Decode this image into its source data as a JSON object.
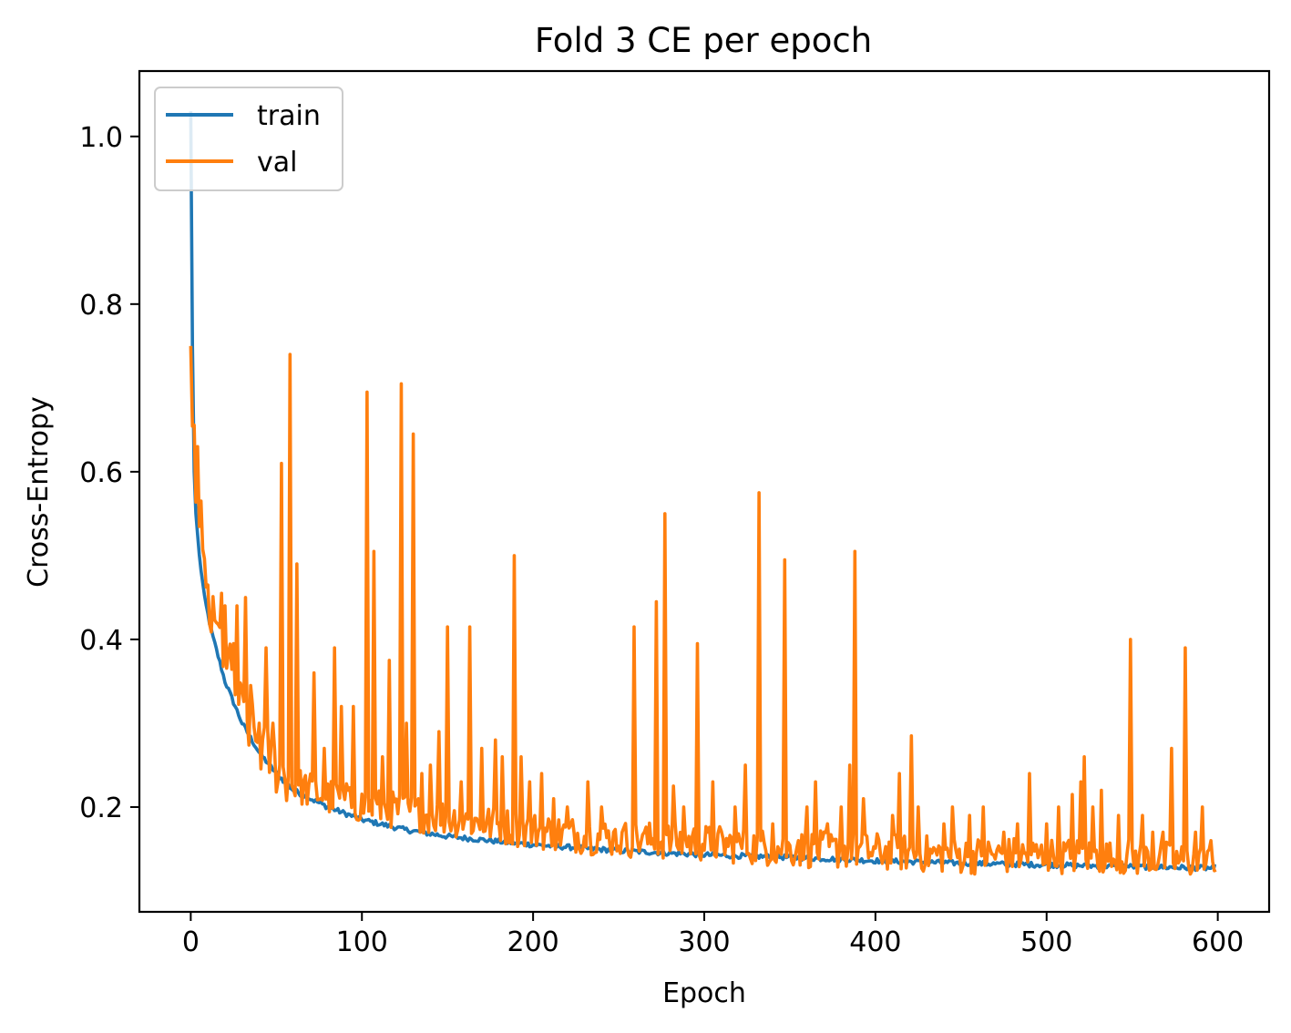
{
  "chart_data": {
    "type": "line",
    "title": "Fold 3 CE per epoch",
    "xlabel": "Epoch",
    "ylabel": "Cross-Entropy",
    "xlim": [
      -30,
      630
    ],
    "ylim": [
      0.075,
      1.078
    ],
    "xticks": [
      0,
      100,
      200,
      300,
      400,
      500,
      600
    ],
    "yticks": [
      0.2,
      0.4,
      0.6,
      0.8,
      1.0
    ],
    "xtick_labels": [
      "0",
      "100",
      "200",
      "300",
      "400",
      "500",
      "600"
    ],
    "ytick_labels": [
      "0.2",
      "0.4",
      "0.6",
      "0.8",
      "1.0"
    ],
    "grid": false,
    "legend": "upper left",
    "colors": {
      "train": "#1f77b4",
      "val": "#ff7f0e"
    },
    "series": [
      {
        "name": "train",
        "epochs": 600,
        "anchors": [
          [
            0,
            1.03
          ],
          [
            1,
            0.75
          ],
          [
            2,
            0.6
          ],
          [
            3,
            0.55
          ],
          [
            5,
            0.5
          ],
          [
            8,
            0.45
          ],
          [
            12,
            0.41
          ],
          [
            16,
            0.38
          ],
          [
            20,
            0.35
          ],
          [
            30,
            0.3
          ],
          [
            40,
            0.265
          ],
          [
            50,
            0.24
          ],
          [
            60,
            0.22
          ],
          [
            80,
            0.2
          ],
          [
            100,
            0.185
          ],
          [
            125,
            0.173
          ],
          [
            150,
            0.165
          ],
          [
            175,
            0.16
          ],
          [
            200,
            0.155
          ],
          [
            250,
            0.148
          ],
          [
            300,
            0.143
          ],
          [
            350,
            0.14
          ],
          [
            400,
            0.136
          ],
          [
            450,
            0.133
          ],
          [
            500,
            0.131
          ],
          [
            550,
            0.129
          ],
          [
            599,
            0.127
          ]
        ]
      },
      {
        "name": "val",
        "epochs": 600,
        "baseline": [
          [
            0,
            0.75
          ],
          [
            2,
            0.62
          ],
          [
            5,
            0.52
          ],
          [
            10,
            0.43
          ],
          [
            20,
            0.38
          ],
          [
            30,
            0.31
          ],
          [
            40,
            0.27
          ],
          [
            50,
            0.245
          ],
          [
            60,
            0.225
          ],
          [
            80,
            0.21
          ],
          [
            100,
            0.2
          ],
          [
            150,
            0.185
          ],
          [
            200,
            0.17
          ],
          [
            250,
            0.16
          ],
          [
            300,
            0.155
          ],
          [
            350,
            0.148
          ],
          [
            400,
            0.145
          ],
          [
            450,
            0.14
          ],
          [
            500,
            0.14
          ],
          [
            550,
            0.138
          ],
          [
            599,
            0.13
          ]
        ],
        "spikes": [
          [
            0,
            0.75
          ],
          [
            4,
            0.63
          ],
          [
            6,
            0.565
          ],
          [
            10,
            0.465
          ],
          [
            15,
            0.42
          ],
          [
            18,
            0.455
          ],
          [
            20,
            0.44
          ],
          [
            25,
            0.395
          ],
          [
            27,
            0.44
          ],
          [
            32,
            0.45
          ],
          [
            35,
            0.345
          ],
          [
            40,
            0.3
          ],
          [
            44,
            0.39
          ],
          [
            48,
            0.3
          ],
          [
            53,
            0.61
          ],
          [
            58,
            0.74
          ],
          [
            62,
            0.49
          ],
          [
            72,
            0.36
          ],
          [
            78,
            0.27
          ],
          [
            84,
            0.39
          ],
          [
            88,
            0.32
          ],
          [
            92,
            0.22
          ],
          [
            95,
            0.32
          ],
          [
            103,
            0.695
          ],
          [
            107,
            0.505
          ],
          [
            112,
            0.26
          ],
          [
            116,
            0.375
          ],
          [
            123,
            0.705
          ],
          [
            126,
            0.3
          ],
          [
            130,
            0.645
          ],
          [
            135,
            0.24
          ],
          [
            140,
            0.25
          ],
          [
            145,
            0.29
          ],
          [
            150,
            0.415
          ],
          [
            158,
            0.23
          ],
          [
            163,
            0.415
          ],
          [
            170,
            0.27
          ],
          [
            178,
            0.28
          ],
          [
            182,
            0.26
          ],
          [
            189,
            0.5
          ],
          [
            193,
            0.26
          ],
          [
            198,
            0.23
          ],
          [
            205,
            0.24
          ],
          [
            212,
            0.21
          ],
          [
            220,
            0.2
          ],
          [
            232,
            0.23
          ],
          [
            240,
            0.2
          ],
          [
            247,
            0.17
          ],
          [
            252,
            0.17
          ],
          [
            259,
            0.415
          ],
          [
            265,
            0.17
          ],
          [
            272,
            0.445
          ],
          [
            277,
            0.55
          ],
          [
            282,
            0.225
          ],
          [
            288,
            0.2
          ],
          [
            296,
            0.395
          ],
          [
            305,
            0.23
          ],
          [
            318,
            0.2
          ],
          [
            324,
            0.25
          ],
          [
            332,
            0.575
          ],
          [
            340,
            0.18
          ],
          [
            347,
            0.495
          ],
          [
            355,
            0.16
          ],
          [
            360,
            0.2
          ],
          [
            365,
            0.23
          ],
          [
            372,
            0.18
          ],
          [
            380,
            0.2
          ],
          [
            385,
            0.25
          ],
          [
            388,
            0.505
          ],
          [
            393,
            0.21
          ],
          [
            410,
            0.19
          ],
          [
            414,
            0.24
          ],
          [
            421,
            0.285
          ],
          [
            425,
            0.2
          ],
          [
            440,
            0.18
          ],
          [
            445,
            0.2
          ],
          [
            455,
            0.19
          ],
          [
            463,
            0.2
          ],
          [
            475,
            0.17
          ],
          [
            483,
            0.18
          ],
          [
            490,
            0.24
          ],
          [
            500,
            0.18
          ],
          [
            507,
            0.2
          ],
          [
            515,
            0.215
          ],
          [
            520,
            0.23
          ],
          [
            522,
            0.26
          ],
          [
            527,
            0.2
          ],
          [
            532,
            0.22
          ],
          [
            542,
            0.19
          ],
          [
            549,
            0.4
          ],
          [
            556,
            0.19
          ],
          [
            562,
            0.17
          ],
          [
            568,
            0.17
          ],
          [
            573,
            0.27
          ],
          [
            581,
            0.39
          ],
          [
            587,
            0.17
          ],
          [
            591,
            0.2
          ],
          [
            596,
            0.16
          ],
          [
            599,
            0.125
          ]
        ]
      }
    ]
  }
}
